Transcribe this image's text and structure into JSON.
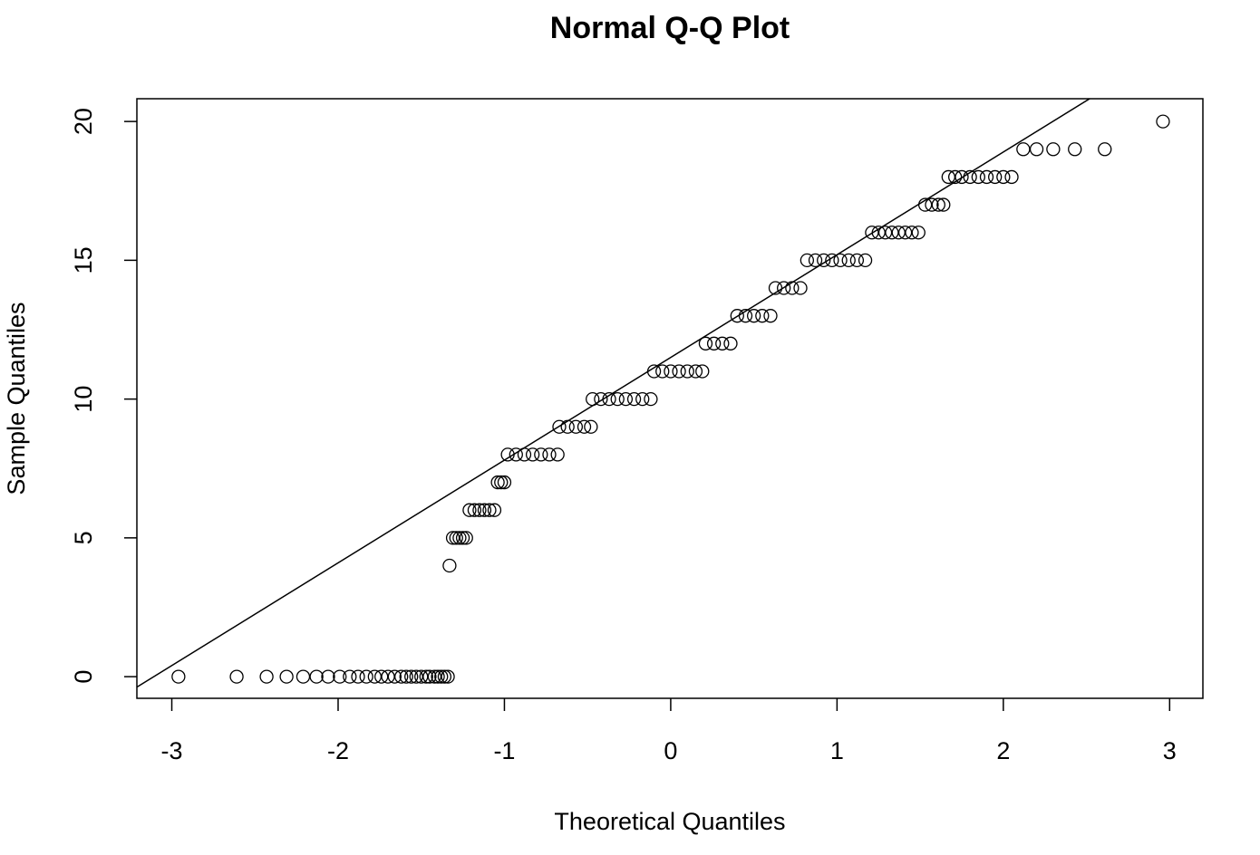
{
  "chart_data": {
    "type": "scatter",
    "title": "Normal Q-Q Plot",
    "x_label": "Theoretical Quantiles",
    "y_label": "Sample Quantiles",
    "xlim": [
      -3.21,
      3.2
    ],
    "ylim": [
      -0.78,
      20.82
    ],
    "xticks": [
      -3,
      -2,
      -1,
      0,
      1,
      2,
      3
    ],
    "yticks": [
      0,
      5,
      10,
      15,
      20
    ],
    "color": "#000000",
    "reference_line": {
      "intercept": 11.5,
      "slope": 3.7
    },
    "x": [
      -2.96,
      -2.61,
      -2.43,
      -2.31,
      -2.21,
      -2.13,
      -2.06,
      -1.99,
      -1.93,
      -1.88,
      -1.83,
      -1.78,
      -1.74,
      -1.7,
      -1.66,
      -1.62,
      -1.59,
      -1.56,
      -1.53,
      -1.5,
      -1.47,
      -1.45,
      -1.42,
      -1.4,
      -1.38,
      -1.36,
      -1.34,
      -1.33,
      -1.31,
      -1.29,
      -1.27,
      -1.25,
      -1.23,
      -1.21,
      -1.18,
      -1.15,
      -1.12,
      -1.09,
      -1.06,
      -1.04,
      -1.02,
      -1.0,
      -0.98,
      -0.93,
      -0.88,
      -0.83,
      -0.78,
      -0.73,
      -0.68,
      -0.67,
      -0.62,
      -0.57,
      -0.52,
      -0.48,
      -0.47,
      -0.42,
      -0.37,
      -0.32,
      -0.27,
      -0.22,
      -0.17,
      -0.12,
      -0.1,
      -0.05,
      0,
      0.05,
      0.1,
      0.15,
      0.19,
      0.21,
      0.26,
      0.31,
      0.36,
      0.4,
      0.45,
      0.5,
      0.55,
      0.6,
      0.63,
      0.68,
      0.73,
      0.78,
      0.82,
      0.87,
      0.92,
      0.97,
      1.02,
      1.07,
      1.12,
      1.17,
      1.21,
      1.25,
      1.29,
      1.33,
      1.37,
      1.41,
      1.45,
      1.49,
      1.53,
      1.57,
      1.61,
      1.64,
      1.67,
      1.71,
      1.75,
      1.8,
      1.85,
      1.9,
      1.95,
      2.0,
      2.05,
      2.12,
      2.2,
      2.3,
      2.43,
      2.61,
      2.96
    ],
    "values": [
      0,
      0,
      0,
      0,
      0,
      0,
      0,
      0,
      0,
      0,
      0,
      0,
      0,
      0,
      0,
      0,
      0,
      0,
      0,
      0,
      0,
      0,
      0,
      0,
      0,
      0,
      0,
      4,
      5,
      5,
      5,
      5,
      5,
      6,
      6,
      6,
      6,
      6,
      6,
      7,
      7,
      7,
      8,
      8,
      8,
      8,
      8,
      8,
      8,
      9,
      9,
      9,
      9,
      9,
      10,
      10,
      10,
      10,
      10,
      10,
      10,
      10,
      11,
      11,
      11,
      11,
      11,
      11,
      11,
      12,
      12,
      12,
      12,
      13,
      13,
      13,
      13,
      13,
      14,
      14,
      14,
      14,
      15,
      15,
      15,
      15,
      15,
      15,
      15,
      15,
      16,
      16,
      16,
      16,
      16,
      16,
      16,
      16,
      17,
      17,
      17,
      17,
      18,
      18,
      18,
      18,
      18,
      18,
      18,
      18,
      18,
      19,
      19,
      19,
      19,
      19,
      20
    ]
  }
}
